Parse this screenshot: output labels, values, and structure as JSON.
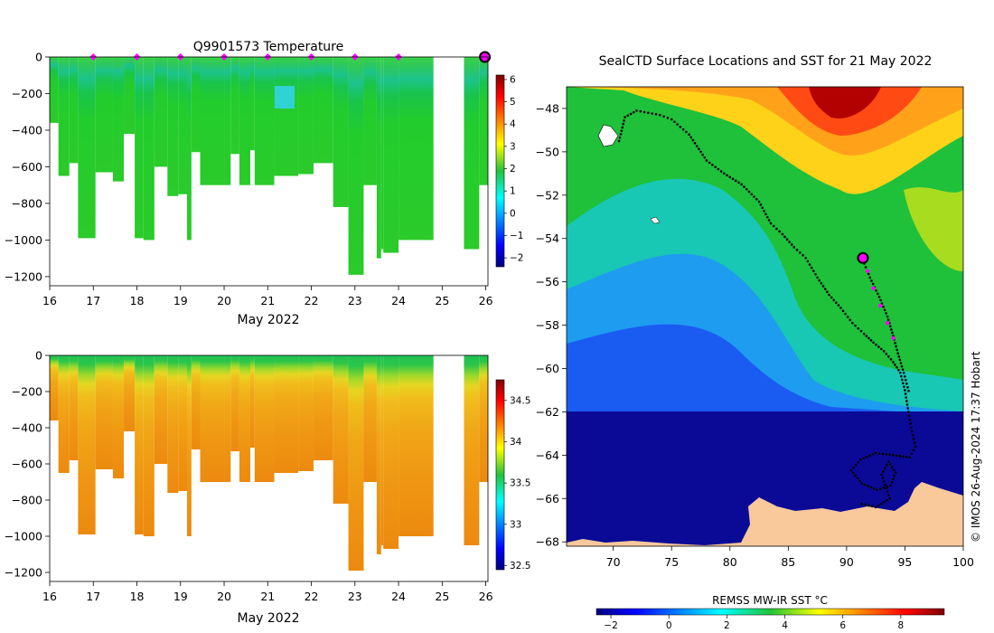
{
  "chart_data": [
    {
      "type": "heatmap",
      "title": "Q9901573  Temperature",
      "xlabel": "May 2022",
      "ylabel": "",
      "x_ticks": [
        16,
        17,
        18,
        19,
        20,
        21,
        22,
        23,
        24,
        25,
        26
      ],
      "y_ticks": [
        0,
        -200,
        -400,
        -600,
        -800,
        -1000,
        -1200
      ],
      "xlim": [
        16,
        26.05
      ],
      "ylim": [
        -1250,
        0
      ],
      "colorbar": {
        "ticks": [
          6,
          5,
          4,
          3,
          2,
          1,
          0,
          -1,
          -2
        ],
        "range": [
          -2.4,
          6.2
        ],
        "colormap": "jet"
      },
      "surface_markers": {
        "color": "#ff00ff",
        "days": [
          17,
          18,
          19,
          20,
          21,
          22,
          23,
          24
        ],
        "highlight_day": 26,
        "highlight_color": "#ff00ff"
      },
      "profiles": [
        {
          "start": 16.0,
          "end": 16.2,
          "depth": -360
        },
        {
          "start": 16.2,
          "end": 16.45,
          "depth": -650
        },
        {
          "start": 16.45,
          "end": 16.65,
          "depth": -580
        },
        {
          "start": 16.65,
          "end": 17.05,
          "depth": -990
        },
        {
          "start": 17.05,
          "end": 17.45,
          "depth": -630
        },
        {
          "start": 17.45,
          "end": 17.7,
          "depth": -680
        },
        {
          "start": 17.7,
          "end": 17.95,
          "depth": -420
        },
        {
          "start": 17.95,
          "end": 18.15,
          "depth": -990
        },
        {
          "start": 18.15,
          "end": 18.4,
          "depth": -1000
        },
        {
          "start": 18.4,
          "end": 18.7,
          "depth": -600
        },
        {
          "start": 18.7,
          "end": 18.95,
          "depth": -760
        },
        {
          "start": 18.95,
          "end": 19.15,
          "depth": -750
        },
        {
          "start": 19.15,
          "end": 19.25,
          "depth": -1000
        },
        {
          "start": 19.25,
          "end": 19.45,
          "depth": -520
        },
        {
          "start": 19.45,
          "end": 20.0,
          "depth": -700
        },
        {
          "start": 20.0,
          "end": 20.15,
          "depth": -700
        },
        {
          "start": 20.15,
          "end": 20.35,
          "depth": -530
        },
        {
          "start": 20.35,
          "end": 20.6,
          "depth": -700
        },
        {
          "start": 20.6,
          "end": 20.7,
          "depth": -510
        },
        {
          "start": 20.7,
          "end": 21.15,
          "depth": -700
        },
        {
          "start": 21.15,
          "end": 21.7,
          "depth": -650
        },
        {
          "start": 21.7,
          "end": 22.05,
          "depth": -640
        },
        {
          "start": 22.05,
          "end": 22.5,
          "depth": -580
        },
        {
          "start": 22.5,
          "end": 22.85,
          "depth": -820
        },
        {
          "start": 22.85,
          "end": 23.2,
          "depth": -1190
        },
        {
          "start": 23.2,
          "end": 23.5,
          "depth": -700
        },
        {
          "start": 23.5,
          "end": 23.6,
          "depth": -1100
        },
        {
          "start": 23.6,
          "end": 23.65,
          "depth": -1050
        },
        {
          "start": 23.65,
          "end": 24.0,
          "depth": -1070
        },
        {
          "start": 24.0,
          "end": 24.8,
          "depth": -1000
        },
        {
          "start": 25.5,
          "end": 25.85,
          "depth": -1050
        },
        {
          "start": 25.85,
          "end": 26.05,
          "depth": -700
        }
      ]
    },
    {
      "type": "heatmap",
      "title": "",
      "xlabel": "May 2022",
      "ylabel": "",
      "x_ticks": [
        16,
        17,
        18,
        19,
        20,
        21,
        22,
        23,
        24,
        25,
        26
      ],
      "y_ticks": [
        0,
        -200,
        -400,
        -600,
        -800,
        -1000,
        -1200
      ],
      "xlim": [
        16,
        26.05
      ],
      "ylim": [
        -1250,
        0
      ],
      "colorbar": {
        "ticks": [
          34.5,
          34,
          33.5,
          33,
          32.5
        ],
        "range": [
          32.45,
          34.75
        ],
        "colormap": "jet"
      }
    },
    {
      "type": "heatmap",
      "title": "SealCTD Surface Locations and SST for 21 May 2022",
      "xlabel": "",
      "ylabel": "",
      "x_ticks": [
        70,
        75,
        80,
        85,
        90,
        95,
        100
      ],
      "y_ticks": [
        -48,
        -50,
        -52,
        -54,
        -56,
        -58,
        -60,
        -62,
        -64,
        -66,
        -68
      ],
      "xlim": [
        66,
        100
      ],
      "ylim": [
        -68.2,
        -47
      ],
      "colorbar": {
        "label": "REMSS MW-IR SST °C",
        "ticks": [
          -2,
          0,
          2,
          4,
          6,
          8
        ],
        "range": [
          -2.5,
          9.5
        ],
        "colormap": "jet"
      },
      "track": [
        [
          70.5,
          -49.5
        ],
        [
          71,
          -48.4
        ],
        [
          72,
          -48.1
        ],
        [
          73,
          -48.2
        ],
        [
          74,
          -48.3
        ],
        [
          75,
          -48.5
        ],
        [
          76.5,
          -49.2
        ],
        [
          78,
          -50.4
        ],
        [
          79.5,
          -51
        ],
        [
          81,
          -51.5
        ],
        [
          82.5,
          -52.3
        ],
        [
          83.5,
          -53.3
        ],
        [
          84.5,
          -53.8
        ],
        [
          85.5,
          -54.4
        ],
        [
          86.5,
          -54.9
        ],
        [
          87.5,
          -55.8
        ],
        [
          88.5,
          -56.6
        ],
        [
          89.5,
          -57.2
        ],
        [
          90.5,
          -57.9
        ],
        [
          91.5,
          -58.4
        ],
        [
          92.3,
          -58.8
        ],
        [
          93.2,
          -59.2
        ],
        [
          94,
          -59.7
        ],
        [
          94.6,
          -60.2
        ],
        [
          95,
          -61
        ],
        [
          95.3,
          -62
        ],
        [
          95.6,
          -62.9
        ],
        [
          95.9,
          -63.6
        ],
        [
          95.4,
          -64.1
        ],
        [
          94,
          -64
        ],
        [
          92.5,
          -63.9
        ],
        [
          91.2,
          -64.2
        ],
        [
          90.4,
          -64.7
        ],
        [
          91.3,
          -65.3
        ],
        [
          92.6,
          -65.6
        ],
        [
          93.8,
          -65.4
        ],
        [
          94.2,
          -64.8
        ],
        [
          93.6,
          -64.3
        ],
        [
          93,
          -64.9
        ],
        [
          93.7,
          -66
        ],
        [
          92.5,
          -66.4
        ],
        [
          91,
          -66.2
        ]
      ],
      "track_return": [
        [
          91.4,
          -55
        ],
        [
          92,
          -55.8
        ],
        [
          92.8,
          -56.7
        ],
        [
          93.5,
          -57.6
        ],
        [
          94,
          -58.5
        ],
        [
          94.4,
          -59.3
        ],
        [
          94.9,
          -60.2
        ],
        [
          95.4,
          -61.2
        ]
      ],
      "recent_locations": [
        [
          91.8,
          -55.5
        ],
        [
          92.3,
          -56.3
        ],
        [
          92.9,
          -57.1
        ],
        [
          93.5,
          -57.9
        ],
        [
          94,
          -58.6
        ]
      ],
      "current_location": [
        91.4,
        -54.9
      ],
      "legend": "none"
    }
  ],
  "credit": "© IMOS 26-Aug-2024 17:37 Hobart",
  "colors": {
    "marker": "#ff00ff",
    "land": "#f9c89b",
    "track": "#000000",
    "frame": "#000000"
  }
}
